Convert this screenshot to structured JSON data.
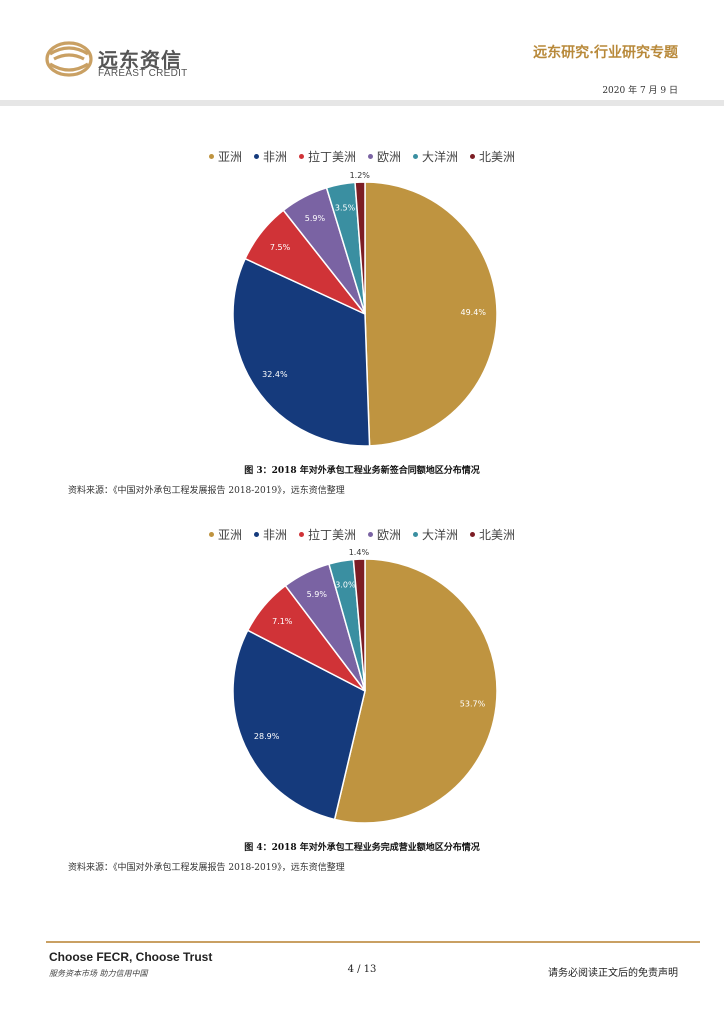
{
  "header": {
    "logo_cn": "远东资信",
    "logo_en": "FAREAST CREDIT",
    "report_title": "远东研究·行业研究专题",
    "date": "2020 年 7 月 9 日"
  },
  "colors": {
    "brand": "#c9a063",
    "asia": "#bf9440",
    "africa": "#153a7c",
    "latam": "#d03337",
    "europe": "#7a63a3",
    "oceania": "#3a8fa1",
    "namerica": "#7c1d24"
  },
  "figures": [
    {
      "caption": "图 3：2018 年对外承包工程业务新签合同额地区分布情况",
      "source": "资料来源：《中国对外承包工程发展报告 2018-2019》，远东资信整理"
    },
    {
      "caption": "图 4：2018 年对外承包工程业务完成营业额地区分布情况",
      "source": "资料来源：《中国对外承包工程发展报告 2018-2019》，远东资信整理"
    }
  ],
  "chart_data": [
    {
      "type": "pie",
      "title": "",
      "categories": [
        "亚洲",
        "非洲",
        "拉丁美洲",
        "欧洲",
        "大洋洲",
        "北美洲"
      ],
      "values": [
        49.4,
        32.4,
        7.5,
        5.9,
        3.5,
        1.2
      ],
      "labels": [
        "49.4%",
        "32.4%",
        "7.5%",
        "5.9%",
        "3.5%",
        "1.2%"
      ],
      "legend": "top"
    },
    {
      "type": "pie",
      "title": "",
      "categories": [
        "亚洲",
        "非洲",
        "拉丁美洲",
        "欧洲",
        "大洋洲",
        "北美洲"
      ],
      "values": [
        53.7,
        28.9,
        7.1,
        5.9,
        3.0,
        1.4
      ],
      "labels": [
        "53.7%",
        "28.9%",
        "7.1%",
        "5.9%",
        "3.0%",
        "1.4%"
      ],
      "legend": "top"
    }
  ],
  "footer": {
    "slogan": "Choose FECR, Choose Trust",
    "motto": "服务资本市场  助力信用中国",
    "page": "4 / 13",
    "disclaimer": "请务必阅读正文后的免责声明"
  }
}
